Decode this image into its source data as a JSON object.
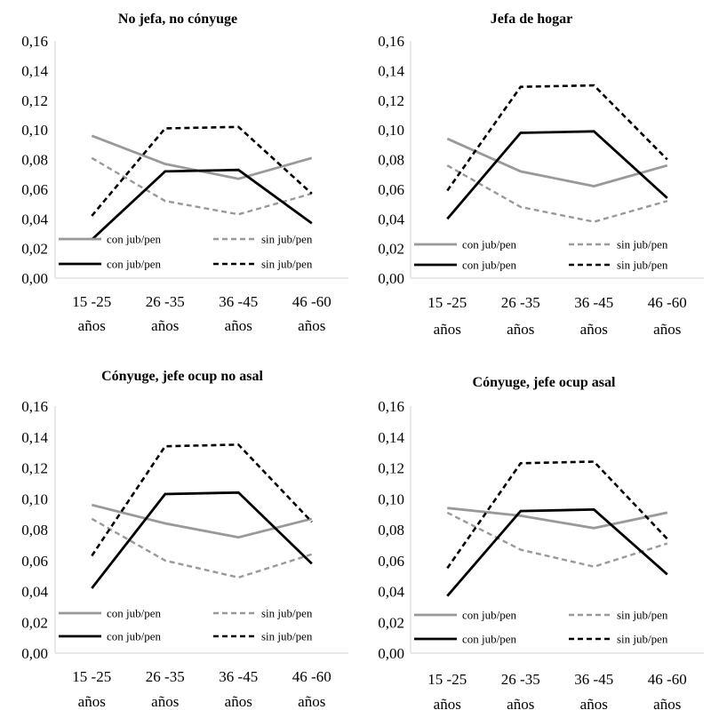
{
  "chart_data": [
    {
      "type": "line",
      "title": "No jefa, no cónyuge",
      "categories": [
        [
          "15 -25",
          "años"
        ],
        [
          "26 -35",
          "años"
        ],
        [
          "36 -45",
          "años"
        ],
        [
          "46 -60",
          "años"
        ]
      ],
      "ylim": [
        0,
        0.16
      ],
      "yticks": [
        "0,00",
        "0,02",
        "0,04",
        "0,06",
        "0,08",
        "0,10",
        "0,12",
        "0,14",
        "0,16"
      ],
      "grid": false,
      "legend": "bottom-inside",
      "series": [
        {
          "name": "con jub/pen",
          "values": [
            0.096,
            0.077,
            0.067,
            0.081
          ]
        },
        {
          "name": "sin jub/pen",
          "values": [
            0.081,
            0.052,
            0.043,
            0.057
          ]
        },
        {
          "name": "con jub/pen",
          "values": [
            0.026,
            0.072,
            0.073,
            0.037
          ]
        },
        {
          "name": "sin jub/pen",
          "values": [
            0.042,
            0.101,
            0.102,
            0.057
          ]
        }
      ]
    },
    {
      "type": "line",
      "title": "Jefa de hogar",
      "categories": [
        [
          "15 -25",
          "años"
        ],
        [
          "26 -35",
          "años"
        ],
        [
          "36 -45",
          "años"
        ],
        [
          "46 -60",
          "años"
        ]
      ],
      "ylim": [
        0,
        0.16
      ],
      "yticks": [
        "0,00",
        "0,02",
        "0,04",
        "0,06",
        "0,08",
        "0,10",
        "0,12",
        "0,14",
        "0,16"
      ],
      "grid": false,
      "legend": "bottom-inside",
      "series": [
        {
          "name": "con jub/pen",
          "values": [
            0.094,
            0.072,
            0.062,
            0.076
          ]
        },
        {
          "name": "sin jub/pen",
          "values": [
            0.076,
            0.048,
            0.038,
            0.052
          ]
        },
        {
          "name": "con jub/pen",
          "values": [
            0.04,
            0.098,
            0.099,
            0.054
          ]
        },
        {
          "name": "sin jub/pen",
          "values": [
            0.059,
            0.129,
            0.13,
            0.08
          ]
        }
      ]
    },
    {
      "type": "line",
      "title": "Cónyuge, jefe ocup no asal",
      "categories": [
        [
          "15 -25",
          "años"
        ],
        [
          "26 -35",
          "años"
        ],
        [
          "36 -45",
          "años"
        ],
        [
          "46 -60",
          "años"
        ]
      ],
      "ylim": [
        0,
        0.16
      ],
      "yticks": [
        "0,00",
        "0,02",
        "0,04",
        "0,06",
        "0,08",
        "0,10",
        "0,12",
        "0,14",
        "0,16"
      ],
      "grid": false,
      "legend": "bottom-inside",
      "series": [
        {
          "name": "con jub/pen",
          "values": [
            0.096,
            0.084,
            0.075,
            0.087
          ]
        },
        {
          "name": "sin jub/pen",
          "values": [
            0.087,
            0.06,
            0.049,
            0.064
          ]
        },
        {
          "name": "con jub/pen",
          "values": [
            0.042,
            0.103,
            0.104,
            0.058
          ]
        },
        {
          "name": "sin jub/pen",
          "values": [
            0.063,
            0.134,
            0.135,
            0.085
          ]
        }
      ]
    },
    {
      "type": "line",
      "title": "Cónyuge, jefe ocup asal",
      "categories": [
        [
          "15 -25",
          "años"
        ],
        [
          "26 -35",
          "años"
        ],
        [
          "36 -45",
          "años"
        ],
        [
          "46 -60",
          "años"
        ]
      ],
      "ylim": [
        0,
        0.16
      ],
      "yticks": [
        "0,00",
        "0,02",
        "0,04",
        "0,06",
        "0,08",
        "0,10",
        "0,12",
        "0,14",
        "0,16"
      ],
      "grid": false,
      "legend": "bottom-inside",
      "series": [
        {
          "name": "con jub/pen",
          "values": [
            0.094,
            0.089,
            0.081,
            0.091
          ]
        },
        {
          "name": "sin jub/pen",
          "values": [
            0.091,
            0.067,
            0.056,
            0.071
          ]
        },
        {
          "name": "con jub/pen",
          "values": [
            0.037,
            0.092,
            0.093,
            0.051
          ]
        },
        {
          "name": "sin jub/pen",
          "values": [
            0.055,
            0.123,
            0.124,
            0.074
          ]
        }
      ]
    }
  ],
  "style": {
    "gray": "#999999",
    "black": "#000000",
    "axis": "#d9d9d9"
  }
}
